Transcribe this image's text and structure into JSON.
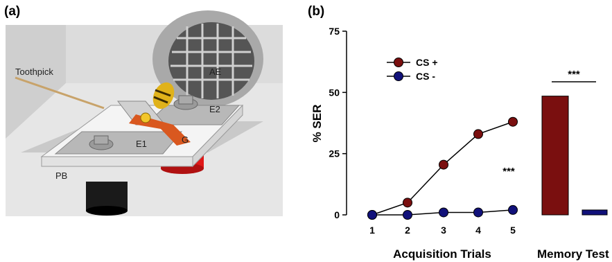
{
  "panel_a": {
    "label": "(a)",
    "labels": {
      "toothpick": "Toothpick",
      "ae": "AE",
      "e1": "E1",
      "e2": "E2",
      "g": "G",
      "pb": "PB"
    }
  },
  "chart_data": {
    "type": "line",
    "panel_label": "(b)",
    "ylabel": "% SER",
    "ylim": [
      0,
      75
    ],
    "yticks": [
      "0",
      "25",
      "50",
      "75"
    ],
    "x_tick_labels": [
      "1",
      "2",
      "3",
      "4",
      "5"
    ],
    "xlabel_acquisition": "Acquisition Trials",
    "xlabel_memory": "Memory Test",
    "legend_position": "top-left",
    "series": [
      {
        "name": "CS +",
        "color": "#7a0f0f",
        "values": [
          0,
          5,
          20.5,
          33,
          38
        ]
      },
      {
        "name": "CS -",
        "color": "#11117a",
        "values": [
          0,
          0,
          1,
          1,
          2
        ]
      }
    ],
    "memory_test": [
      {
        "series": "CS +",
        "color": "#7a0f0f",
        "value": 48.5
      },
      {
        "series": "CS -",
        "color": "#11117a",
        "value": 2
      }
    ],
    "significance": {
      "acquisition": "***",
      "memory": "***"
    }
  }
}
